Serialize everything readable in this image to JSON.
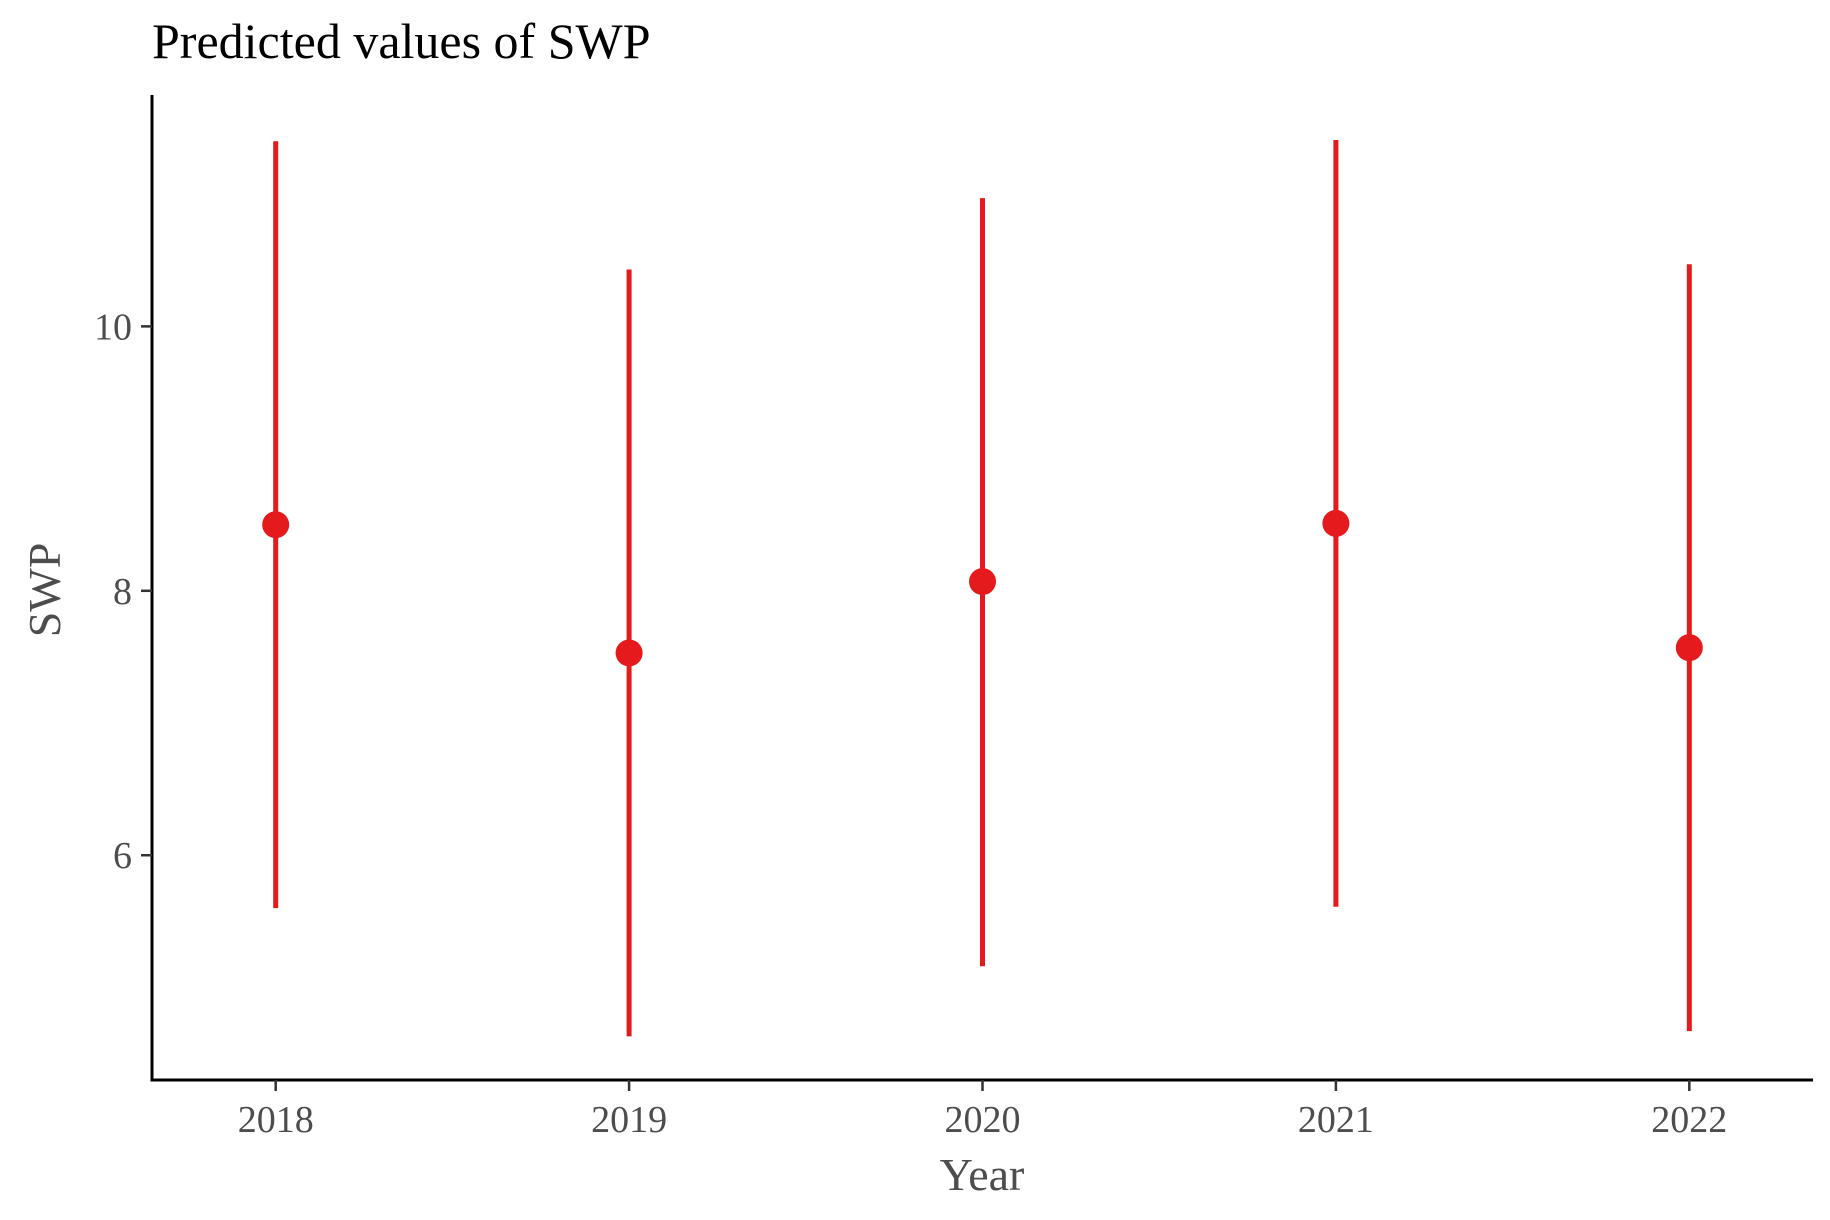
{
  "chart_data": {
    "type": "scatter",
    "title": "Predicted values of SWP",
    "xlabel": "Year",
    "ylabel": "SWP",
    "categories": [
      "2018",
      "2019",
      "2020",
      "2021",
      "2022"
    ],
    "series": [
      {
        "values": [
          8.5,
          7.53,
          8.07,
          8.51,
          7.57
        ],
        "ci_low": [
          5.6,
          4.63,
          5.16,
          5.61,
          4.67
        ],
        "ci_high": [
          11.4,
          10.43,
          10.97,
          11.41,
          10.47
        ]
      }
    ],
    "yticks": [
      6,
      8,
      10
    ],
    "ylim": [
      4.3,
      11.75
    ],
    "grid": false,
    "legend": "none",
    "colors": {
      "series": "#e41a1c",
      "axis": "#000000",
      "text": "#4d4d4d"
    }
  }
}
